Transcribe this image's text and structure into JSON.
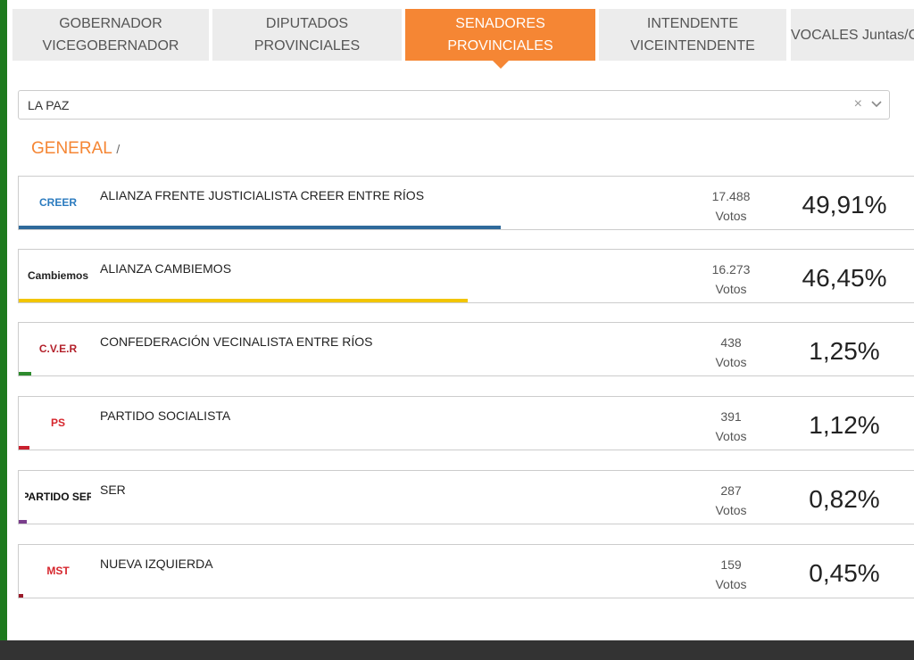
{
  "tabs": [
    {
      "lines": [
        "GOBERNADOR",
        "VICEGOBERNADOR"
      ]
    },
    {
      "lines": [
        "DIPUTADOS",
        "PROVINCIALES"
      ]
    },
    {
      "lines": [
        "SENADORES",
        "PROVINCIALES"
      ],
      "active": true
    },
    {
      "lines": [
        "INTENDENTE",
        "VICEINTENDENTE"
      ]
    },
    {
      "lines": [
        "VOCALES Juntas/Comunas"
      ]
    }
  ],
  "selector": {
    "value": "LA PAZ",
    "clear": "×"
  },
  "breadcrumb": {
    "title": "GENERAL",
    "separator": "/"
  },
  "results": [
    {
      "logo": "CREER",
      "logo_color": "#2b7bbf",
      "name": "ALIANZA FRENTE JUSTICIALISTA CREER ENTRE RÍOS",
      "votes": "17.488",
      "unit": "Votos",
      "percent": {
        "value": 49.91,
        "label": "49,91%"
      },
      "color": "#2f6a9b"
    },
    {
      "logo": "Cambiemos",
      "logo_color": "#222222",
      "name": "ALIANZA CAMBIEMOS",
      "votes": "16.273",
      "unit": "Votos",
      "percent": {
        "value": 46.45,
        "label": "46,45%"
      },
      "color": "#f2c500"
    },
    {
      "logo": "C.V.E.R",
      "logo_color": "#b3202a",
      "name": "CONFEDERACIÓN VECINALISTA ENTRE RÍOS",
      "votes": "438",
      "unit": "Votos",
      "percent": {
        "value": 1.25,
        "label": "1,25%"
      },
      "color": "#2e8b2e"
    },
    {
      "logo": "PS",
      "logo_color": "#d6262d",
      "name": "PARTIDO SOCIALISTA",
      "votes": "391",
      "unit": "Votos",
      "percent": {
        "value": 1.12,
        "label": "1,12%"
      },
      "color": "#c9202e"
    },
    {
      "logo": "PARTIDO SER",
      "logo_color": "#111111",
      "name": "SER",
      "votes": "287",
      "unit": "Votos",
      "percent": {
        "value": 0.82,
        "label": "0,82%"
      },
      "color": "#7a3d8c"
    },
    {
      "logo": "MST",
      "logo_color": "#d6262d",
      "name": "NUEVA IZQUIERDA",
      "votes": "159",
      "unit": "Votos",
      "percent": {
        "value": 0.45,
        "label": "0,45%"
      },
      "color": "#9b1b2a"
    }
  ]
}
